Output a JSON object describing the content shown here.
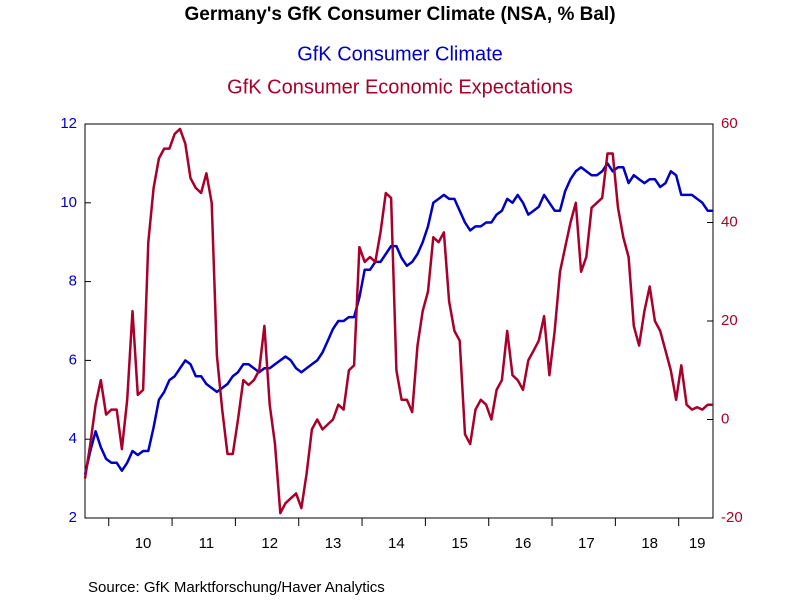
{
  "chart_data": {
    "type": "line",
    "title": "Germany's GfK Consumer Climate (NSA, % Bal)",
    "source": "Source:  GfK Marktforschung/Haver Analytics",
    "categories": [
      null,
      null,
      null,
      null,
      null,
      null,
      null,
      null,
      null,
      null,
      null,
      "10",
      null,
      null,
      null,
      null,
      null,
      null,
      null,
      null,
      null,
      null,
      null,
      "11",
      null,
      null,
      null,
      null,
      null,
      null,
      null,
      null,
      null,
      null,
      null,
      "12",
      null,
      null,
      null,
      null,
      null,
      null,
      null,
      null,
      null,
      null,
      null,
      "13",
      null,
      null,
      null,
      null,
      null,
      null,
      null,
      null,
      null,
      null,
      null,
      "14",
      null,
      null,
      null,
      null,
      null,
      null,
      null,
      null,
      null,
      null,
      null,
      "15",
      null,
      null,
      null,
      null,
      null,
      null,
      null,
      null,
      null,
      null,
      null,
      "16",
      null,
      null,
      null,
      null,
      null,
      null,
      null,
      null,
      null,
      null,
      null,
      "17",
      null,
      null,
      null,
      null,
      null,
      null,
      null,
      null,
      null,
      null,
      null,
      "18",
      null,
      null,
      null,
      null,
      null,
      null,
      null,
      null,
      "19",
      null,
      null,
      null
    ],
    "ylim": [
      2,
      12
    ],
    "yticks": [
      2,
      4,
      6,
      8,
      10,
      12
    ],
    "y2lim": [
      -20,
      60
    ],
    "y2ticks": [
      -20,
      0,
      20,
      40,
      60
    ],
    "series": [
      {
        "name": "GfK Consumer Climate",
        "color": "#0000c0",
        "axis": "y",
        "values": [
          3.1,
          3.7,
          4.2,
          3.8,
          3.5,
          3.4,
          3.4,
          3.2,
          3.4,
          3.7,
          3.6,
          3.7,
          3.7,
          4.3,
          5.0,
          5.2,
          5.5,
          5.6,
          5.8,
          6.0,
          5.9,
          5.6,
          5.6,
          5.4,
          5.3,
          5.2,
          5.3,
          5.4,
          5.6,
          5.7,
          5.9,
          5.9,
          5.8,
          5.7,
          5.8,
          5.8,
          5.9,
          6.0,
          6.1,
          6.0,
          5.8,
          5.7,
          5.8,
          5.9,
          6.0,
          6.2,
          6.5,
          6.8,
          7.0,
          7.0,
          7.1,
          7.1,
          7.6,
          8.3,
          8.3,
          8.5,
          8.5,
          8.7,
          8.9,
          8.9,
          8.6,
          8.4,
          8.5,
          8.7,
          9.0,
          9.4,
          10.0,
          10.1,
          10.2,
          10.1,
          10.1,
          9.8,
          9.5,
          9.3,
          9.4,
          9.4,
          9.5,
          9.5,
          9.7,
          9.8,
          10.1,
          10.0,
          10.2,
          10.0,
          9.7,
          9.8,
          9.9,
          10.2,
          10.0,
          9.8,
          9.8,
          10.3,
          10.6,
          10.8,
          10.9,
          10.8,
          10.7,
          10.7,
          10.8,
          11.0,
          10.8,
          10.9,
          10.9,
          10.5,
          10.7,
          10.6,
          10.5,
          10.6,
          10.6,
          10.4,
          10.5,
          10.8,
          10.7,
          10.2,
          10.2,
          10.2,
          10.1,
          10.0,
          9.8,
          9.8
        ]
      },
      {
        "name": "GfK Consumer Economic Expectations",
        "color": "#a8002a",
        "axis": "y2",
        "values": [
          -12,
          -5,
          3,
          8,
          1,
          2,
          2,
          -6,
          4,
          22,
          5,
          6,
          36,
          47,
          53,
          55,
          55,
          58,
          59,
          56,
          49,
          47,
          46,
          50,
          44,
          13,
          2,
          -7,
          -7,
          0,
          8,
          7,
          8,
          10,
          19,
          3,
          -5,
          -19,
          -17,
          -16,
          -15,
          -18,
          -11,
          -2,
          0,
          -2,
          -1,
          0,
          3,
          2,
          10,
          11,
          35,
          32,
          33,
          32,
          38,
          46,
          45,
          10,
          4,
          4,
          1.5,
          15,
          22,
          26,
          37,
          36,
          38,
          24,
          18,
          16,
          -3,
          -5,
          2,
          4,
          3,
          0,
          6,
          8,
          18,
          9,
          8,
          6,
          12,
          14,
          16,
          21,
          9,
          18,
          30,
          35,
          40,
          44,
          30,
          33,
          43,
          44,
          45,
          54,
          54,
          43,
          37,
          33,
          19,
          15,
          22,
          27,
          20,
          18,
          14,
          10,
          4,
          11,
          3,
          2,
          2.5,
          2,
          3,
          3
        ]
      }
    ]
  }
}
